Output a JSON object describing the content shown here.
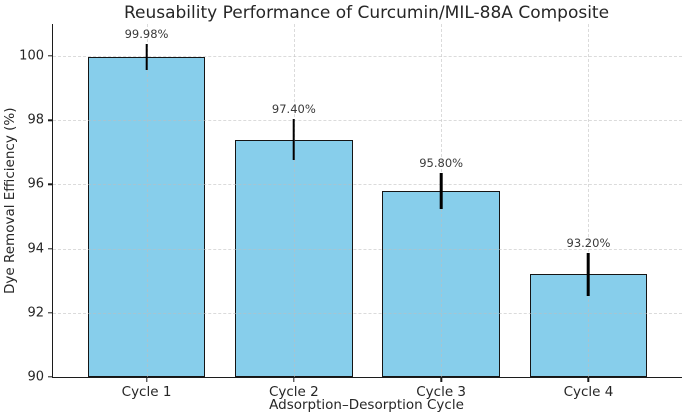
{
  "chart_data": {
    "type": "bar",
    "title": "Reusability Performance of Curcumin/MIL-88A Composite",
    "xlabel": "Adsorption–Desorption Cycle",
    "ylabel": "Dye Removal Efficiency (%)",
    "categories": [
      "Cycle 1",
      "Cycle 2",
      "Cycle 3",
      "Cycle 4"
    ],
    "values": [
      99.98,
      97.4,
      95.8,
      93.2
    ],
    "errors": [
      0.4,
      0.65,
      0.55,
      0.68
    ],
    "value_labels": [
      "99.98%",
      "97.40%",
      "95.80%",
      "93.20%"
    ],
    "ylim": [
      90,
      101
    ],
    "yticks": [
      90,
      92,
      94,
      96,
      98,
      100
    ],
    "xlim": [
      -0.635,
      3.635
    ],
    "bar_width": 0.8,
    "grid": true,
    "legend": "none",
    "bar_color": "#87CEEB",
    "bar_edge_color": "#151515",
    "error_color": "#000000",
    "grid_color": "#bebebe",
    "text_color": "#262626"
  }
}
